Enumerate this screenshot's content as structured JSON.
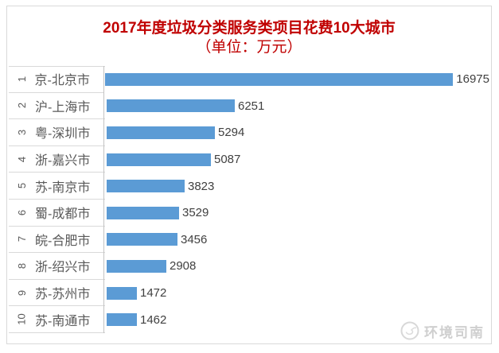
{
  "chart_data": {
    "type": "bar",
    "orientation": "horizontal",
    "title": "2017年度垃圾分类服务类项目花费10大城市",
    "subtitle": "（单位：万元）",
    "unit": "万元",
    "ranks": [
      "1",
      "2",
      "3",
      "4",
      "5",
      "6",
      "7",
      "8",
      "9",
      "10"
    ],
    "categories": [
      "京-北京市",
      "沪-上海市",
      "粤-深圳市",
      "浙-嘉兴市",
      "苏-南京市",
      "蜀-成都市",
      "皖-合肥市",
      "浙-绍兴市",
      "苏-苏州市",
      "苏-南通市"
    ],
    "values": [
      16975,
      6251,
      5294,
      5087,
      3823,
      3529,
      3456,
      2908,
      1472,
      1462
    ],
    "xlim": [
      0,
      16975
    ],
    "grid": false,
    "legend": false,
    "value_label_position": "outside-end",
    "bar_color": "#5B9BD5"
  },
  "watermark": {
    "text": "环境司南",
    "icon": "compass-icon"
  },
  "colors": {
    "title_red": "#C00000",
    "bar_blue": "#5B9BD5",
    "category_gray": "#595959",
    "value_gray": "#404040",
    "separator_gray": "#D9D9D9",
    "axis_gray": "#C3C3C3",
    "watermark_gray": "#CFCFCF"
  }
}
